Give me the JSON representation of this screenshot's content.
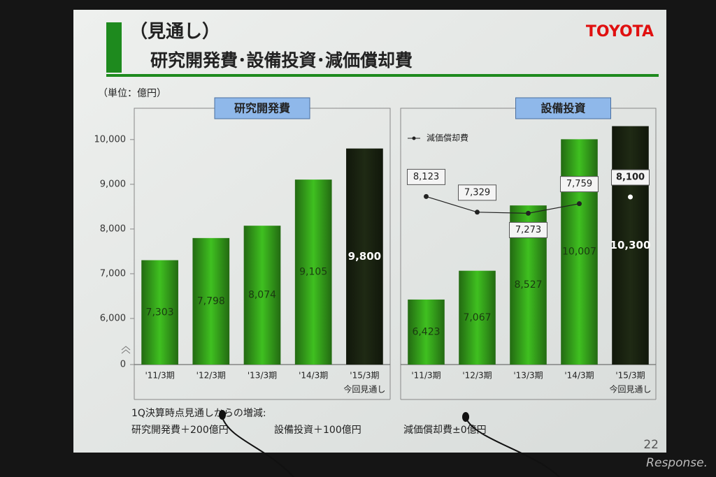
{
  "header": {
    "title": "（見通し）",
    "subtitle": "研究開発費･設備投資･減価償却費",
    "brand": "TOYOTA",
    "unit": "（単位：億円）"
  },
  "chart_data": [
    {
      "type": "bar",
      "title": "研究開発費",
      "categories": [
        "'11/3期",
        "'12/3期",
        "'13/3期",
        "'14/3期",
        "'15/3期"
      ],
      "forecast_label": "今回見通し",
      "values": [
        7303,
        7798,
        8074,
        9105,
        9800
      ],
      "value_labels": [
        "7,303",
        "7,798",
        "8,074",
        "9,105",
        "9,800"
      ],
      "colors": [
        "#3fc020",
        "#3fc020",
        "#3fc020",
        "#3fc020",
        "#1f2a14"
      ],
      "ylim": [
        0,
        10700
      ],
      "axis_break": [
        0,
        6000
      ],
      "yticks": [
        0,
        {
          "value": 6000,
          "label": "6,000"
        },
        {
          "value": 7000,
          "label": "7,000"
        },
        {
          "value": 8000,
          "label": "8,000"
        },
        {
          "value": 9000,
          "label": "9,000"
        },
        {
          "value": 10000,
          "label": "10,000"
        }
      ]
    },
    {
      "type": "bar",
      "categories": [
        "'11/3期",
        "'12/3期",
        "'13/3期",
        "'14/3期",
        "'15/3期"
      ],
      "forecast_label": "今回見通し",
      "ylim": [
        0,
        10700
      ],
      "axis_break": [
        0,
        6000
      ],
      "y2lim": [
        -400,
        12600
      ],
      "series": [
        {
          "name": "設備投資",
          "type": "bar",
          "colors": [
            "#3fc020",
            "#3fc020",
            "#3fc020",
            "#3fc020",
            "#1f2a14"
          ],
          "values": [
            6423,
            7067,
            8527,
            10007,
            10300
          ],
          "value_labels": [
            "6,423",
            "7,067",
            "8,527",
            "10,007",
            "10,300"
          ]
        },
        {
          "name": "減価償却費",
          "type": "line",
          "axis": "y2",
          "color": "#222",
          "values": [
            8123,
            7329,
            7273,
            7759,
            8100
          ],
          "value_labels": [
            "8,123",
            "7,329",
            "7,273",
            "7,759",
            "8,100"
          ],
          "label_positions": [
            "above",
            "above",
            "below",
            "above",
            "above"
          ]
        }
      ]
    }
  ],
  "notes": {
    "heading": "1Q決算時点見通しからの増減:",
    "items": [
      "研究開発費＋200億円",
      "設備投資＋100億円",
      "減価償却費±0億円"
    ]
  },
  "page_number": "22",
  "watermark": "Response."
}
